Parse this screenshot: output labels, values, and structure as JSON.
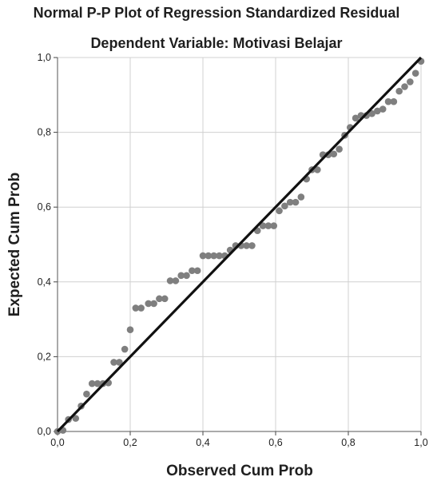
{
  "chart_data": {
    "type": "scatter",
    "title": "Normal P-P Plot of Regression Standardized Residual",
    "subtitle": "Dependent Variable: Motivasi Belajar",
    "xlabel": "Observed Cum Prob",
    "ylabel": "Expected Cum Prob",
    "xlim": [
      0,
      1
    ],
    "ylim": [
      0,
      1
    ],
    "x_ticks": [
      "0,0",
      "0,2",
      "0,4",
      "0,6",
      "0,8",
      "1,0"
    ],
    "y_ticks": [
      "0,0",
      "0,2",
      "0,4",
      "0,6",
      "0,8",
      "1,0"
    ],
    "grid": true,
    "reference_line": {
      "from": [
        0,
        0
      ],
      "to": [
        1,
        1
      ]
    },
    "colors": {
      "points": "#7f7f7f",
      "line": "#111111",
      "grid": "#d0d0d0"
    },
    "points": [
      [
        0.0,
        0.0
      ],
      [
        0.015,
        0.003
      ],
      [
        0.03,
        0.032
      ],
      [
        0.05,
        0.035
      ],
      [
        0.065,
        0.068
      ],
      [
        0.08,
        0.1
      ],
      [
        0.095,
        0.128
      ],
      [
        0.11,
        0.128
      ],
      [
        0.125,
        0.128
      ],
      [
        0.14,
        0.13
      ],
      [
        0.155,
        0.185
      ],
      [
        0.17,
        0.185
      ],
      [
        0.185,
        0.22
      ],
      [
        0.2,
        0.272
      ],
      [
        0.215,
        0.33
      ],
      [
        0.23,
        0.33
      ],
      [
        0.25,
        0.342
      ],
      [
        0.265,
        0.342
      ],
      [
        0.28,
        0.355
      ],
      [
        0.295,
        0.355
      ],
      [
        0.31,
        0.403
      ],
      [
        0.325,
        0.403
      ],
      [
        0.34,
        0.417
      ],
      [
        0.355,
        0.417
      ],
      [
        0.37,
        0.43
      ],
      [
        0.385,
        0.43
      ],
      [
        0.4,
        0.47
      ],
      [
        0.415,
        0.47
      ],
      [
        0.43,
        0.47
      ],
      [
        0.445,
        0.47
      ],
      [
        0.46,
        0.47
      ],
      [
        0.475,
        0.485
      ],
      [
        0.49,
        0.497
      ],
      [
        0.505,
        0.497
      ],
      [
        0.52,
        0.497
      ],
      [
        0.535,
        0.497
      ],
      [
        0.55,
        0.537
      ],
      [
        0.565,
        0.55
      ],
      [
        0.58,
        0.55
      ],
      [
        0.595,
        0.55
      ],
      [
        0.61,
        0.59
      ],
      [
        0.625,
        0.603
      ],
      [
        0.64,
        0.613
      ],
      [
        0.655,
        0.613
      ],
      [
        0.67,
        0.627
      ],
      [
        0.685,
        0.675
      ],
      [
        0.7,
        0.7
      ],
      [
        0.715,
        0.7
      ],
      [
        0.73,
        0.74
      ],
      [
        0.745,
        0.74
      ],
      [
        0.76,
        0.742
      ],
      [
        0.775,
        0.755
      ],
      [
        0.79,
        0.792
      ],
      [
        0.805,
        0.813
      ],
      [
        0.82,
        0.838
      ],
      [
        0.835,
        0.845
      ],
      [
        0.85,
        0.845
      ],
      [
        0.865,
        0.85
      ],
      [
        0.88,
        0.857
      ],
      [
        0.895,
        0.862
      ],
      [
        0.91,
        0.882
      ],
      [
        0.925,
        0.882
      ],
      [
        0.94,
        0.91
      ],
      [
        0.955,
        0.922
      ],
      [
        0.97,
        0.935
      ],
      [
        0.985,
        0.958
      ],
      [
        1.0,
        0.99
      ]
    ]
  }
}
